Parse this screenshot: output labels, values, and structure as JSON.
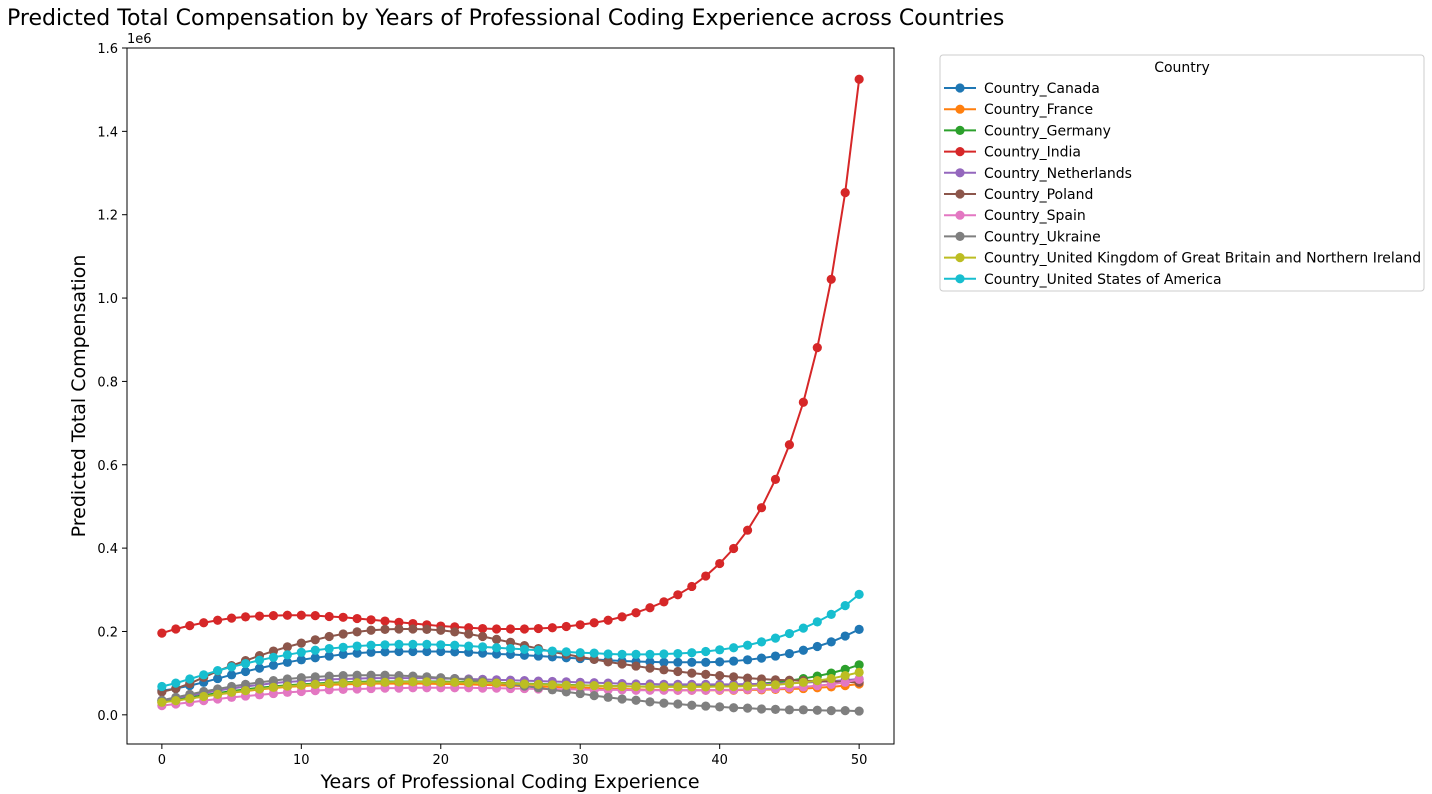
{
  "chart_data": {
    "type": "line",
    "title": "Predicted Total Compensation by Years of Professional Coding Experience across Countries",
    "xlabel": "Years of Professional Coding Experience",
    "ylabel": "Predicted Total Compensation",
    "y_offset_label": "1e6",
    "xlim": [
      -2.5,
      52.5
    ],
    "ylim": [
      -70000,
      1600000
    ],
    "x_ticks": [
      0,
      10,
      20,
      30,
      40,
      50
    ],
    "x_tick_labels": [
      "0",
      "10",
      "20",
      "30",
      "40",
      "50"
    ],
    "y_ticks": [
      0,
      200000,
      400000,
      600000,
      800000,
      1000000,
      1200000,
      1400000,
      1600000
    ],
    "y_tick_labels": [
      "0.0",
      "0.2",
      "0.4",
      "0.6",
      "0.8",
      "1.0",
      "1.2",
      "1.4",
      "1.6"
    ],
    "grid": false,
    "legend": {
      "title": "Country",
      "placement": "outside-upper-right"
    },
    "x": [
      0,
      1,
      2,
      3,
      4,
      5,
      6,
      7,
      8,
      9,
      10,
      11,
      12,
      13,
      14,
      15,
      16,
      17,
      18,
      19,
      20,
      21,
      22,
      23,
      24,
      25,
      26,
      27,
      28,
      29,
      30,
      31,
      32,
      33,
      34,
      35,
      36,
      37,
      38,
      39,
      40,
      41,
      42,
      43,
      44,
      45,
      46,
      47,
      48,
      49,
      50
    ],
    "series": [
      {
        "name": "Country_Canada",
        "color": "#1f77b4",
        "values": [
          58000,
          63000,
          70000,
          78000,
          87000,
          96000,
          104000,
          112000,
          119000,
          126000,
          132000,
          137000,
          141000,
          145000,
          148000,
          150000,
          151000,
          152000,
          152000,
          152000,
          152000,
          151000,
          150000,
          148000,
          146000,
          145000,
          143000,
          141000,
          139000,
          137000,
          135000,
          133000,
          131000,
          129000,
          128000,
          127000,
          126000,
          126000,
          126000,
          126000,
          127000,
          129000,
          132000,
          136000,
          141000,
          147000,
          155000,
          164000,
          175000,
          189000,
          205000
        ]
      },
      {
        "name": "Country_France",
        "color": "#ff7f0e",
        "values": [
          30000,
          34000,
          39000,
          44000,
          49000,
          53000,
          57000,
          61000,
          64000,
          67000,
          69000,
          71000,
          72000,
          73000,
          74000,
          75000,
          75000,
          75000,
          75000,
          75000,
          74000,
          74000,
          73000,
          72000,
          71000,
          70000,
          69000,
          68000,
          67000,
          66000,
          65000,
          64000,
          63000,
          62000,
          61000,
          60000,
          60000,
          59000,
          59000,
          59000,
          59000,
          59000,
          60000,
          60000,
          61000,
          62000,
          63000,
          65000,
          67000,
          70000,
          74000
        ]
      },
      {
        "name": "Country_Germany",
        "color": "#2ca02c",
        "values": [
          33000,
          37000,
          42000,
          47000,
          52000,
          57000,
          61000,
          65000,
          68000,
          71000,
          73000,
          75000,
          77000,
          78000,
          79000,
          80000,
          80000,
          80000,
          80000,
          80000,
          80000,
          79000,
          79000,
          78000,
          77000,
          76000,
          75000,
          74000,
          73000,
          72000,
          71000,
          70000,
          69000,
          69000,
          68000,
          68000,
          68000,
          68000,
          68000,
          69000,
          70000,
          71000,
          73000,
          75000,
          78000,
          82000,
          87000,
          93000,
          100000,
          109000,
          120000
        ]
      },
      {
        "name": "Country_India",
        "color": "#d62728",
        "values": [
          196000,
          206000,
          214000,
          221000,
          227000,
          232000,
          235000,
          237000,
          238000,
          239000,
          239000,
          238000,
          236000,
          234000,
          231000,
          228000,
          225000,
          222000,
          219000,
          216000,
          213000,
          211000,
          209000,
          207000,
          206000,
          206000,
          206000,
          207000,
          209000,
          212000,
          216000,
          221000,
          227000,
          235000,
          245000,
          257000,
          271000,
          288000,
          308000,
          333000,
          363000,
          399000,
          443000,
          497000,
          565000,
          648000,
          750000,
          881000,
          1045000,
          1253000,
          1525000
        ]
      },
      {
        "name": "Country_Netherlands",
        "color": "#9467bd",
        "values": [
          35000,
          40000,
          46000,
          52000,
          58000,
          63000,
          68000,
          72000,
          76000,
          79000,
          81000,
          83000,
          85000,
          86000,
          87000,
          88000,
          88000,
          88000,
          88000,
          88000,
          87000,
          87000,
          86000,
          85000,
          84000,
          83000,
          82000,
          81000,
          80000,
          79000,
          78000,
          77000,
          76000,
          75000,
          74000,
          74000,
          73000,
          73000,
          73000,
          73000,
          73000,
          73000,
          74000,
          74000,
          75000,
          76000,
          77000,
          79000,
          81000,
          83000,
          86000
        ]
      },
      {
        "name": "Country_Poland",
        "color": "#8c564b",
        "values": [
          55000,
          63000,
          75000,
          90000,
          105000,
          118000,
          130000,
          142000,
          153000,
          163000,
          172000,
          180000,
          188000,
          194000,
          199000,
          203000,
          205000,
          206000,
          206000,
          205000,
          203000,
          199000,
          194000,
          188000,
          181000,
          174000,
          166000,
          159000,
          151000,
          145000,
          139000,
          133000,
          127000,
          122000,
          117000,
          112000,
          108000,
          104000,
          100000,
          97000,
          94000,
          91000,
          88000,
          86000,
          84000,
          83000,
          82000,
          81000,
          80000,
          79000,
          78000
        ]
      },
      {
        "name": "Country_Spain",
        "color": "#e377c2",
        "values": [
          22000,
          26000,
          30000,
          34000,
          38000,
          42000,
          45000,
          48000,
          51000,
          54000,
          56000,
          58000,
          60000,
          61000,
          62000,
          63000,
          64000,
          64000,
          65000,
          65000,
          65000,
          65000,
          65000,
          64000,
          64000,
          63000,
          63000,
          62000,
          62000,
          61000,
          61000,
          60000,
          60000,
          60000,
          59000,
          59000,
          59000,
          59000,
          59000,
          59000,
          60000,
          60000,
          61000,
          62000,
          63000,
          65000,
          67000,
          70000,
          73000,
          78000,
          85000
        ]
      },
      {
        "name": "Country_Ukraine",
        "color": "#7f7f7f",
        "values": [
          35000,
          42000,
          49000,
          56000,
          62000,
          68000,
          73000,
          78000,
          82000,
          86000,
          89000,
          91000,
          93000,
          94000,
          95000,
          95000,
          95000,
          94000,
          93000,
          91000,
          89000,
          87000,
          84000,
          81000,
          77000,
          73000,
          69000,
          65000,
          60000,
          55000,
          51000,
          46000,
          42000,
          38000,
          35000,
          31000,
          28000,
          26000,
          23000,
          21000,
          19000,
          17000,
          16000,
          14000,
          13000,
          12000,
          12000,
          11000,
          10000,
          10000,
          9000
        ]
      },
      {
        "name": "Country_United Kingdom of Great Britain and Northern Ireland",
        "color": "#bcbd22",
        "values": [
          30000,
          34000,
          39000,
          44000,
          49000,
          54000,
          58000,
          62000,
          66000,
          69000,
          71000,
          73000,
          75000,
          76000,
          77000,
          78000,
          78000,
          79000,
          79000,
          79000,
          78000,
          78000,
          77000,
          77000,
          76000,
          75000,
          74000,
          73000,
          72000,
          71000,
          70000,
          70000,
          69000,
          68000,
          68000,
          67000,
          67000,
          67000,
          67000,
          67000,
          68000,
          68000,
          69000,
          71000,
          72000,
          75000,
          78000,
          82000,
          87000,
          94000,
          102000
        ]
      },
      {
        "name": "Country_United States of America",
        "color": "#17becf",
        "values": [
          68000,
          76000,
          86000,
          96000,
          106000,
          115000,
          123000,
          131000,
          138000,
          144000,
          150000,
          155000,
          159000,
          162000,
          165000,
          167000,
          168000,
          169000,
          169000,
          169000,
          168000,
          167000,
          165000,
          163000,
          161000,
          159000,
          157000,
          155000,
          153000,
          151000,
          149000,
          148000,
          146000,
          145000,
          145000,
          145000,
          146000,
          147000,
          149000,
          152000,
          156000,
          161000,
          167000,
          175000,
          184000,
          195000,
          208000,
          223000,
          241000,
          262000,
          289000
        ]
      }
    ]
  }
}
